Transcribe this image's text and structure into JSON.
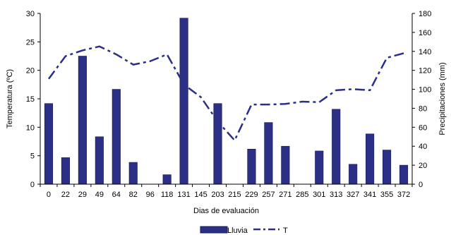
{
  "chart_data": {
    "type": "bar",
    "categories": [
      "0",
      "22",
      "29",
      "49",
      "64",
      "82",
      "96",
      "118",
      "131",
      "145",
      "203",
      "215",
      "229",
      "257",
      "271",
      "285",
      "301",
      "313",
      "327",
      "341",
      "355",
      "372"
    ],
    "xlabel": "Dias de evaluación",
    "ylabel_left": "Temperatura (ºC)",
    "ylabel_right": "Precipitaciones (mm)",
    "ylim_left": [
      0,
      30
    ],
    "yticks_left": [
      0,
      5,
      10,
      15,
      20,
      25,
      30
    ],
    "ylim_right": [
      0,
      180
    ],
    "yticks_right": [
      0,
      20,
      40,
      60,
      80,
      100,
      120,
      140,
      160,
      180
    ],
    "grid": false,
    "legend_position": "bottom",
    "series": [
      {
        "name": "Lluvia",
        "kind": "bar",
        "axis": "right",
        "color": "#2B2F86",
        "values": [
          85,
          28,
          135,
          50,
          100,
          23,
          0,
          10,
          175,
          0,
          85,
          0,
          37,
          65,
          40,
          0,
          35,
          79,
          21,
          53,
          36,
          20
        ]
      },
      {
        "name": "T",
        "kind": "line",
        "axis": "left",
        "style": "dash-dot",
        "color": "#2B2F86",
        "values": [
          18.5,
          22.5,
          23.5,
          24.2,
          22.8,
          21.0,
          21.6,
          22.8,
          17.5,
          15.3,
          11.0,
          7.7,
          14.0,
          14.0,
          14.1,
          14.5,
          14.4,
          16.5,
          16.7,
          16.5,
          22.2,
          23.0
        ]
      }
    ]
  }
}
